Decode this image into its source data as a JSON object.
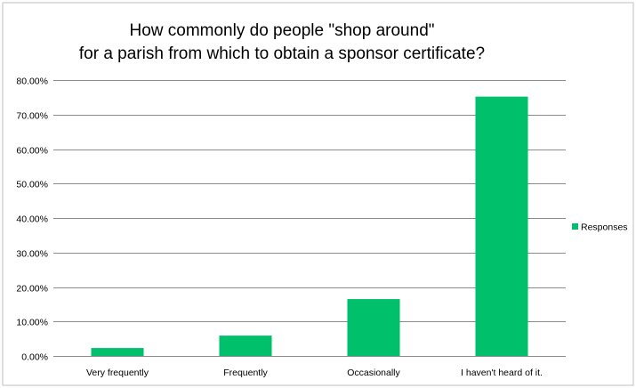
{
  "chart_data": {
    "type": "bar",
    "title_lines": [
      "How commonly do people \"shop around\"",
      "for a parish from which to obtain a sponsor certificate?"
    ],
    "categories": [
      "Very frequently",
      "Frequently",
      "Occasionally",
      "I haven't heard of it."
    ],
    "series": [
      {
        "name": "Responses",
        "values": [
          2.3,
          5.9,
          16.5,
          75.2
        ],
        "color": "#00c06b"
      }
    ],
    "ylim": [
      0,
      80
    ],
    "yticks": [
      0,
      10,
      20,
      30,
      40,
      50,
      60,
      70,
      80
    ],
    "ytick_labels": [
      "0.00%",
      "10.00%",
      "20.00%",
      "30.00%",
      "40.00%",
      "50.00%",
      "60.00%",
      "70.00%",
      "80.00%"
    ],
    "grid": true,
    "legend_position": "right"
  }
}
